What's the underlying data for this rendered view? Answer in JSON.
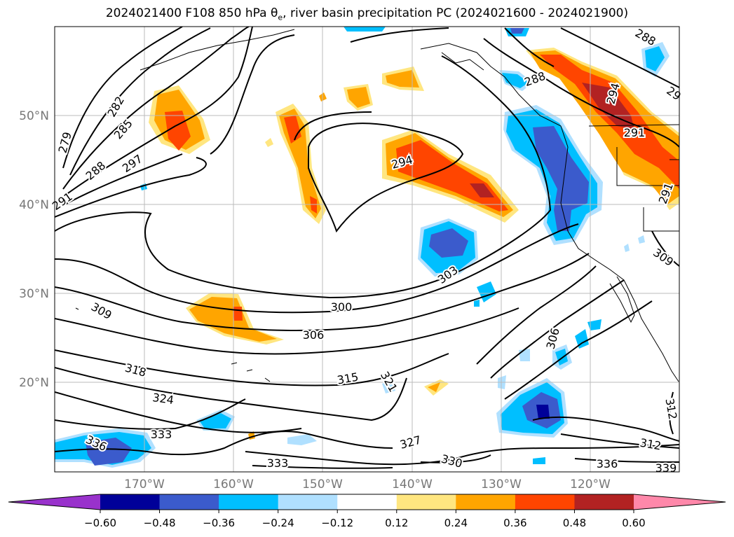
{
  "title": {
    "main": "2024021400 F108 850 hPa θ",
    "sub": "e",
    "rest": ", river basin precipitation PC (2024021600 - 2024021900)"
  },
  "axes": {
    "lat_ticks": [
      "50°N",
      "40°N",
      "30°N",
      "20°N"
    ],
    "lon_ticks": [
      "170°W",
      "160°W",
      "150°W",
      "140°W",
      "130°W",
      "120°W"
    ]
  },
  "contour_labels": [
    "279",
    "282",
    "285",
    "288",
    "291",
    "297",
    "288",
    "294",
    "294",
    "291",
    "291",
    "300",
    "303",
    "306",
    "309",
    "309",
    "315",
    "318",
    "321",
    "324",
    "327",
    "330",
    "333",
    "333",
    "336",
    "336",
    "339",
    "306",
    "312",
    "312",
    "288",
    "29"
  ],
  "colorbar": {
    "ticks": [
      "−0.60",
      "−0.48",
      "−0.36",
      "−0.24",
      "−0.12",
      "0.12",
      "0.24",
      "0.36",
      "0.48",
      "0.60"
    ],
    "colors": {
      "under": "#9932cc",
      "bins": [
        "#000099",
        "#3b5bcc",
        "#00bfff",
        "#b0e0ff",
        "#ffffff",
        "#ffe680",
        "#ffa500",
        "#ff4500",
        "#b22222"
      ],
      "over": "#ff88aa"
    }
  },
  "colors": {
    "contour": "#000000",
    "grid": "#bbbbbb",
    "tick_text": "#777777"
  }
}
